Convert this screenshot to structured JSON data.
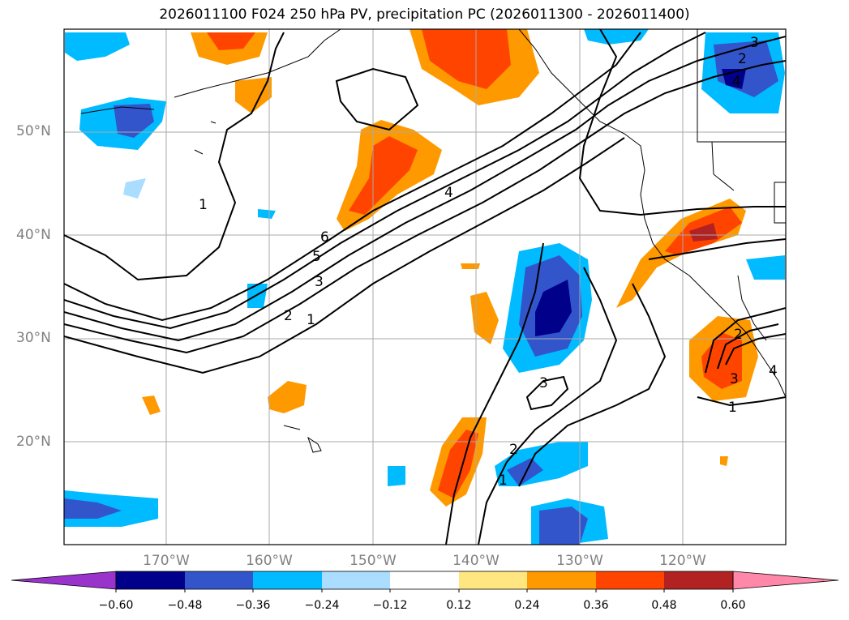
{
  "title": "2026011100 F024 250 hPa PV, precipitation PC (2026011300 - 2026011400)",
  "lat_labels": [
    "50°N",
    "40°N",
    "30°N",
    "20°N"
  ],
  "lon_labels": [
    "170°W",
    "160°W",
    "150°W",
    "140°W",
    "130°W",
    "120°W"
  ],
  "colorbar": {
    "ticks": [
      "−0.60",
      "−0.48",
      "−0.36",
      "−0.24",
      "−0.12",
      "0.12",
      "0.24",
      "0.36",
      "0.48",
      "0.60"
    ],
    "colors": [
      "#9933cc",
      "#00008b",
      "#3355cc",
      "#00bbff",
      "#aaddff",
      "#ffffff",
      "#ffe680",
      "#ff9900",
      "#ff4400",
      "#b22222",
      "#ff88aa"
    ]
  },
  "contour_labels": [
    "1",
    "2",
    "3",
    "4",
    "5",
    "6",
    "1",
    "2",
    "3",
    "4",
    "1",
    "2",
    "3",
    "1",
    "2",
    "3",
    "4"
  ]
}
